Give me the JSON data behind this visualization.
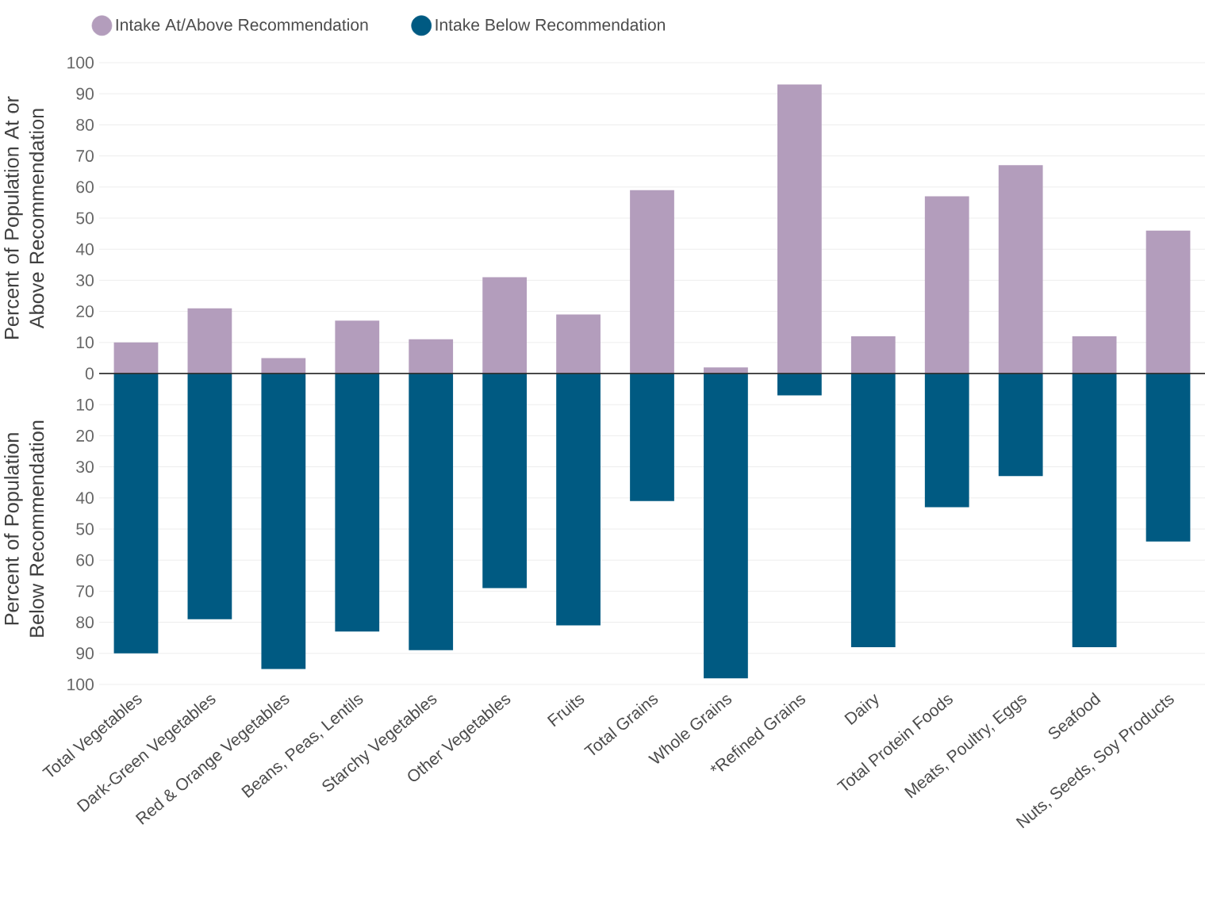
{
  "chart_data": {
    "type": "bar",
    "ylabel": "Percent of Population At or Above Recommendation",
    "annotations": [
      "Percent of Population Below Recommendation"
    ],
    "categories": [
      "Total Vegetables",
      "Dark-Green Vegetables",
      "Red & Orange Vegetables",
      "Beans, Peas, Lentils",
      "Starchy Vegetables",
      "Other Vegetables",
      "Fruits",
      "Total Grains",
      "Whole Grains",
      "*Refined Grains",
      "Dairy",
      "Total Protein Foods",
      "Meats, Poultry, Eggs",
      "Seafood",
      "Nuts, Seeds, Soy Products"
    ],
    "series": [
      {
        "name": "Intake At/Above Recommendation",
        "color": "#b39dbc",
        "values": [
          10,
          21,
          5,
          17,
          11,
          31,
          19,
          59,
          2,
          93,
          12,
          57,
          67,
          12,
          46
        ]
      },
      {
        "name": "Intake Below Recommendation",
        "color": "#005a82",
        "values": [
          -90,
          -79,
          -95,
          -83,
          -89,
          -69,
          -81,
          -41,
          -98,
          -7,
          -88,
          -43,
          -33,
          -88,
          -54
        ]
      }
    ],
    "ylim": [
      -100,
      100
    ],
    "yticks": [
      {
        "value": -100,
        "label": "100"
      },
      {
        "value": -90,
        "label": "90"
      },
      {
        "value": -80,
        "label": "80"
      },
      {
        "value": -70,
        "label": "70"
      },
      {
        "value": -60,
        "label": "60"
      },
      {
        "value": -50,
        "label": "50"
      },
      {
        "value": -40,
        "label": "40"
      },
      {
        "value": -30,
        "label": "30"
      },
      {
        "value": -20,
        "label": "20"
      },
      {
        "value": -10,
        "label": "10"
      },
      0,
      10,
      20,
      30,
      40,
      50,
      60,
      70,
      80,
      90,
      100
    ],
    "ref_lines": [
      {
        "axis": "y",
        "value": 0,
        "color": "#333333"
      }
    ],
    "grid": "y",
    "legend": "top left",
    "stacked": true
  }
}
